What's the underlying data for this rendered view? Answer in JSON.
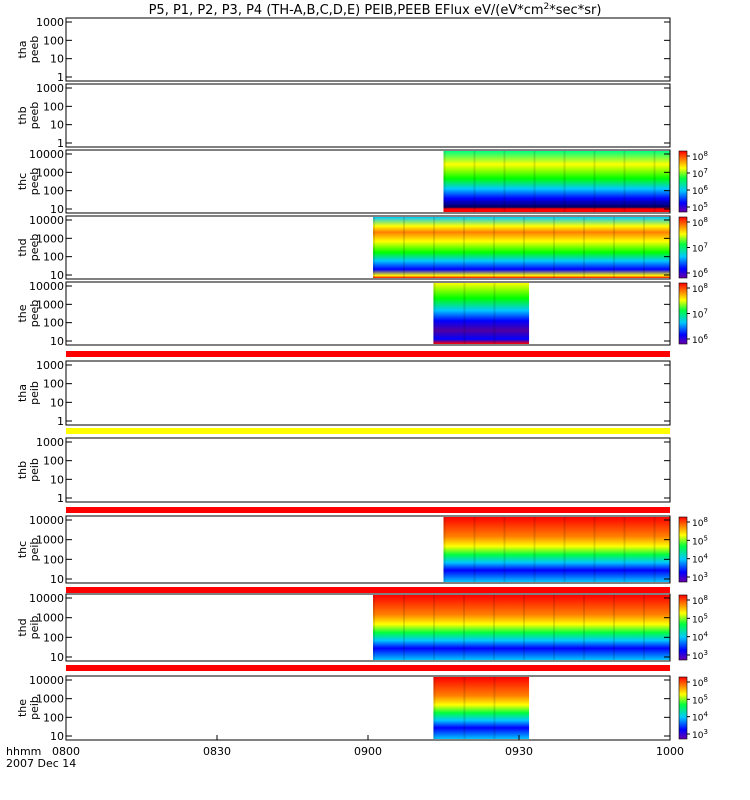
{
  "chart_data": {
    "type": "heatmap",
    "title": "P5, P1, P2, P3, P4 (TH-A,B,C,D,E) PEIB,PEEB EFlux eV/(eV*cm",
    "title_sup": "2",
    "title_tail": "*sec*sr)",
    "x_axis_label": "hhmm",
    "date_label": "2007 Dec 14",
    "x_ticks": [
      "0800",
      "0830",
      "0900",
      "0930",
      "1000"
    ],
    "x_range": [
      "0800",
      "1000"
    ],
    "colorbar_ticks_peeb": [
      "10",
      "10",
      "10",
      "10"
    ],
    "panels": [
      {
        "probe": "tha",
        "product": "peeb",
        "yticks": [
          "1000",
          "100",
          "10",
          "1"
        ],
        "data_start": null,
        "data_end": null,
        "colorbar": []
      },
      {
        "probe": "thb",
        "product": "peeb",
        "yticks": [
          "1000",
          "100",
          "10",
          "1"
        ],
        "data_start": null,
        "data_end": null,
        "colorbar": []
      },
      {
        "probe": "thc",
        "product": "peeb",
        "yticks": [
          "10000",
          "1000",
          "100",
          "10"
        ],
        "data_start": "0915",
        "data_end": "1000",
        "colorbar": [
          "10^8",
          "10^7",
          "10^6",
          "10^5"
        ]
      },
      {
        "probe": "thd",
        "product": "peeb",
        "yticks": [
          "10000",
          "1000",
          "100",
          "10"
        ],
        "data_start": "0901",
        "data_end": "1000",
        "colorbar": [
          "10^8",
          "10^7",
          "10^6"
        ]
      },
      {
        "probe": "the",
        "product": "peeb",
        "yticks": [
          "10000",
          "1000",
          "100",
          "10"
        ],
        "data_start": "0913",
        "data_end": "0932",
        "colorbar": [
          "10^8",
          "10^7",
          "10^6"
        ]
      },
      {
        "probe": "tha",
        "product": "peib",
        "yticks": [
          "1000",
          "100",
          "10",
          "1"
        ],
        "data_start": null,
        "data_end": null,
        "colorbar": []
      },
      {
        "probe": "thb",
        "product": "peib",
        "yticks": [
          "1000",
          "100",
          "10",
          "1"
        ],
        "data_start": null,
        "data_end": null,
        "colorbar": []
      },
      {
        "probe": "thc",
        "product": "peib",
        "yticks": [
          "10000",
          "1000",
          "100",
          "10"
        ],
        "data_start": "0915",
        "data_end": "1000",
        "colorbar": [
          "10^8",
          "10^5",
          "10^4",
          "10^3"
        ]
      },
      {
        "probe": "thd",
        "product": "peib",
        "yticks": [
          "10000",
          "1000",
          "100",
          "10"
        ],
        "data_start": "0901",
        "data_end": "1000",
        "colorbar": [
          "10^8",
          "10^5",
          "10^4",
          "10^3"
        ]
      },
      {
        "probe": "the",
        "product": "peib",
        "yticks": [
          "10000",
          "1000",
          "100",
          "10"
        ],
        "data_start": "0913",
        "data_end": "0932",
        "colorbar": [
          "10^8",
          "10^5",
          "10^4",
          "10^3"
        ]
      }
    ],
    "colors": {
      "red": "#ff0000",
      "yellow": "#ffff00",
      "green": "#00ff00",
      "cyan": "#00ffff",
      "blue": "#0000ff",
      "black": "#000000"
    }
  }
}
